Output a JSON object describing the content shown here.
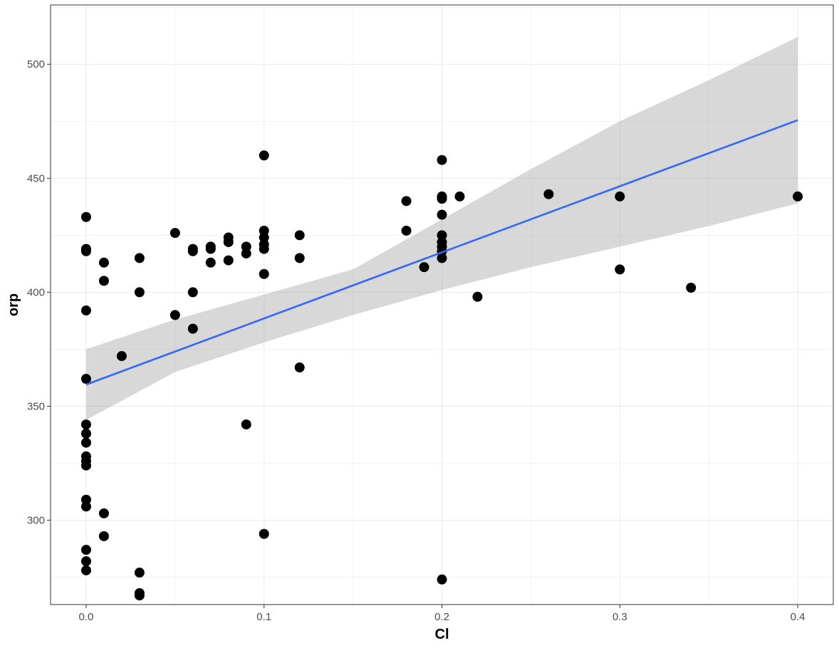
{
  "chart_data": {
    "type": "scatter",
    "title": "",
    "xlabel": "Cl",
    "ylabel": "orp",
    "xlim": [
      -0.02,
      0.42
    ],
    "ylim": [
      263,
      526
    ],
    "x_ticks": [
      0.0,
      0.1,
      0.2,
      0.3,
      0.4
    ],
    "x_tick_labels": [
      "0.0",
      "0.1",
      "0.2",
      "0.3",
      "0.4"
    ],
    "y_ticks": [
      300,
      350,
      400,
      450,
      500
    ],
    "y_tick_labels": [
      "300",
      "350",
      "400",
      "450",
      "500"
    ],
    "grid": true,
    "legend": "none",
    "colors": {
      "points": "#000000",
      "fit_line": "#3366FF",
      "confidence_band": "#999999",
      "grid": "#ebebeb",
      "panel_border": "#333333"
    },
    "points": [
      [
        0.0,
        433
      ],
      [
        0.0,
        419
      ],
      [
        0.0,
        418
      ],
      [
        0.0,
        392
      ],
      [
        0.0,
        362
      ],
      [
        0.0,
        342
      ],
      [
        0.0,
        338
      ],
      [
        0.0,
        334
      ],
      [
        0.0,
        328
      ],
      [
        0.0,
        326
      ],
      [
        0.0,
        324
      ],
      [
        0.0,
        309
      ],
      [
        0.0,
        306
      ],
      [
        0.0,
        287
      ],
      [
        0.0,
        282
      ],
      [
        0.0,
        278
      ],
      [
        0.01,
        413
      ],
      [
        0.01,
        405
      ],
      [
        0.01,
        303
      ],
      [
        0.01,
        293
      ],
      [
        0.02,
        372
      ],
      [
        0.03,
        415
      ],
      [
        0.03,
        400
      ],
      [
        0.03,
        277
      ],
      [
        0.03,
        268
      ],
      [
        0.03,
        267
      ],
      [
        0.05,
        426
      ],
      [
        0.05,
        390
      ],
      [
        0.06,
        419
      ],
      [
        0.06,
        418
      ],
      [
        0.06,
        400
      ],
      [
        0.06,
        384
      ],
      [
        0.07,
        420
      ],
      [
        0.07,
        419
      ],
      [
        0.07,
        413
      ],
      [
        0.08,
        424
      ],
      [
        0.08,
        422
      ],
      [
        0.08,
        414
      ],
      [
        0.09,
        420
      ],
      [
        0.09,
        417
      ],
      [
        0.09,
        342
      ],
      [
        0.1,
        460
      ],
      [
        0.1,
        427
      ],
      [
        0.1,
        424
      ],
      [
        0.1,
        421
      ],
      [
        0.1,
        419
      ],
      [
        0.1,
        408
      ],
      [
        0.1,
        294
      ],
      [
        0.12,
        425
      ],
      [
        0.12,
        415
      ],
      [
        0.12,
        367
      ],
      [
        0.18,
        440
      ],
      [
        0.18,
        427
      ],
      [
        0.19,
        411
      ],
      [
        0.2,
        458
      ],
      [
        0.2,
        442
      ],
      [
        0.2,
        441
      ],
      [
        0.2,
        434
      ],
      [
        0.2,
        425
      ],
      [
        0.2,
        422
      ],
      [
        0.2,
        420
      ],
      [
        0.2,
        418
      ],
      [
        0.2,
        415
      ],
      [
        0.2,
        274
      ],
      [
        0.21,
        442
      ],
      [
        0.22,
        398
      ],
      [
        0.26,
        443
      ],
      [
        0.3,
        442
      ],
      [
        0.3,
        410
      ],
      [
        0.34,
        402
      ],
      [
        0.4,
        442
      ]
    ],
    "fit_line": {
      "x": [
        0.0,
        0.4
      ],
      "y": [
        359.5,
        475.5
      ]
    },
    "confidence_band": {
      "x": [
        0.0,
        0.05,
        0.1,
        0.15,
        0.2,
        0.25,
        0.3,
        0.35,
        0.4
      ],
      "lower": [
        344,
        365,
        378,
        390,
        401,
        411,
        420,
        429,
        439
      ],
      "upper": [
        375,
        388,
        399,
        410,
        432,
        454,
        475,
        493,
        512
      ]
    }
  }
}
